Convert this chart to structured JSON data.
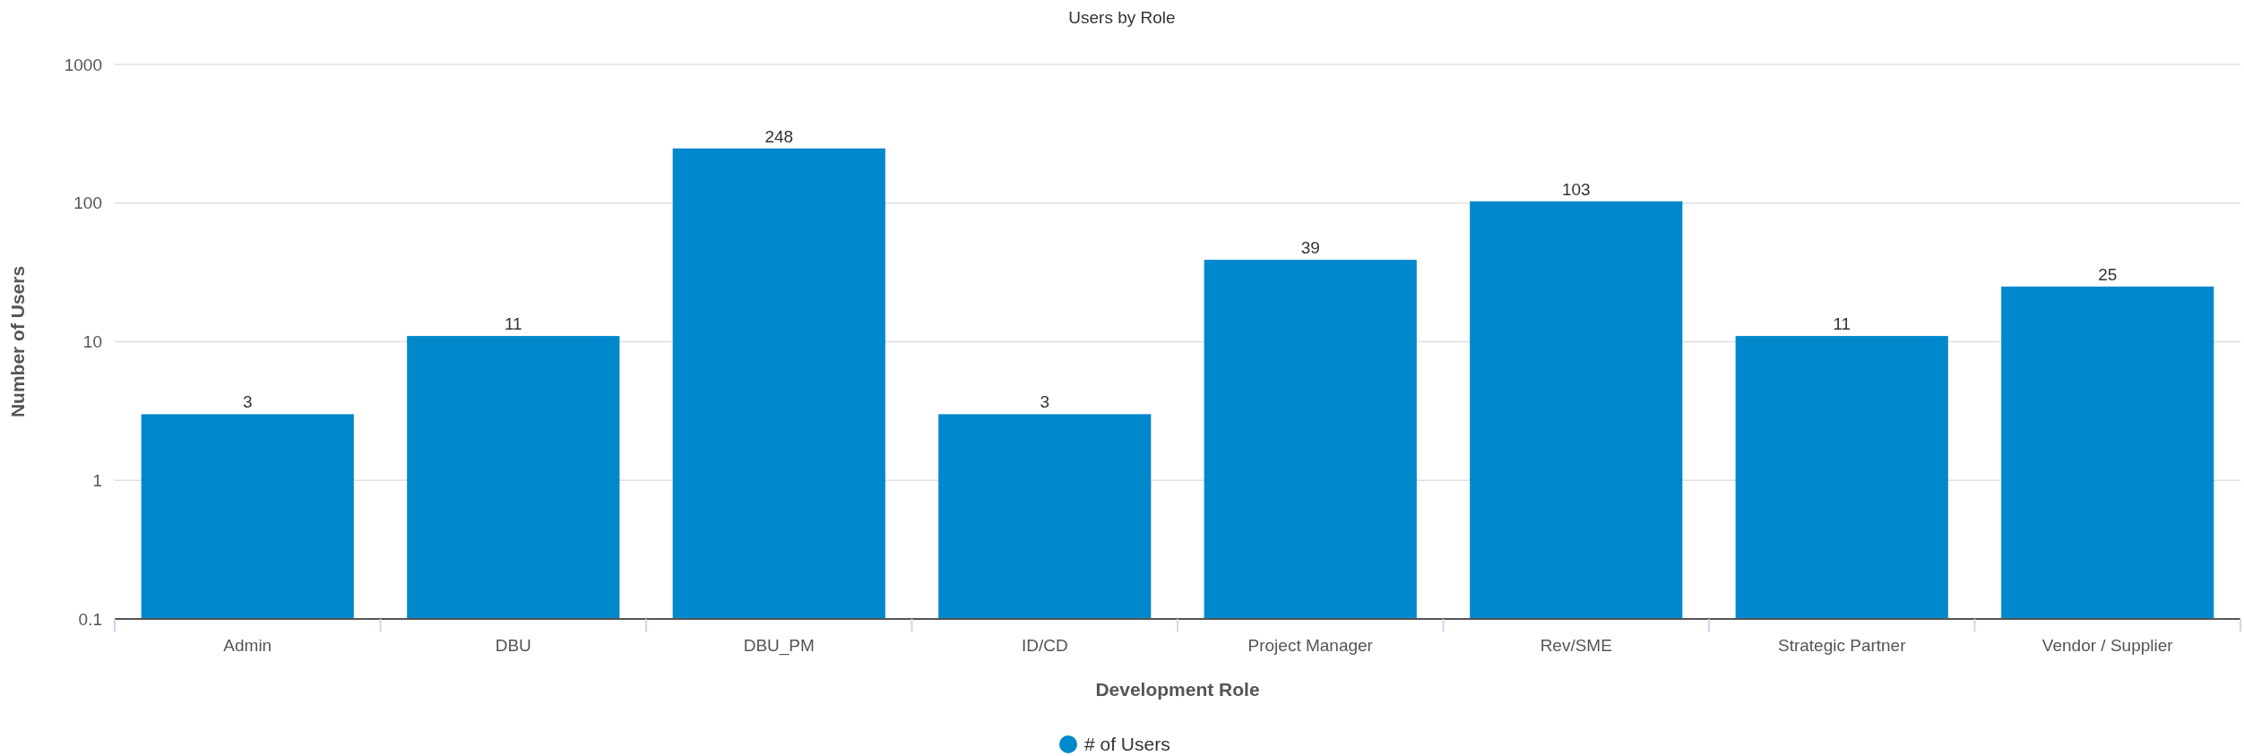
{
  "chart_data": {
    "type": "bar",
    "title": "Users by Role",
    "xlabel": "Development Role",
    "ylabel": "Number of Users",
    "categories": [
      "Admin",
      "DBU",
      "DBU_PM",
      "ID/CD",
      "Project Manager",
      "Rev/SME",
      "Strategic Partner",
      "Vendor / Supplier"
    ],
    "series": [
      {
        "name": "# of Users",
        "color": "#0088cc",
        "values": [
          3,
          11,
          248,
          3,
          39,
          103,
          11,
          25
        ]
      }
    ],
    "log": true,
    "ylim": [
      0.1,
      1000
    ],
    "yticks": [
      0.1,
      1,
      10,
      100,
      1000
    ],
    "grid": "y",
    "legend": "bottom",
    "data_labels": true
  }
}
